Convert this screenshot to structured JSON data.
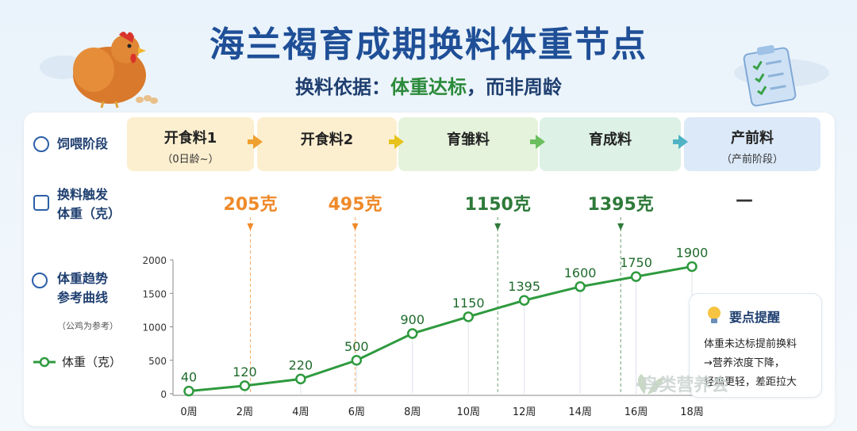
{
  "header": {
    "title": "海兰褐育成期换料体重节点",
    "subtitle_prefix": "换料依据：",
    "subtitle_highlight": "体重达标",
    "subtitle_suffix": "，而非周龄"
  },
  "rows": {
    "stage_label": "饲喂阶段",
    "trigger_label_1": "换料触发",
    "trigger_label_2": "体重（克）",
    "trend_label_1": "体重趋势",
    "trend_label_2": "参考曲线",
    "trend_note": "（公鸡为参考）",
    "legend_label": "体重（克）"
  },
  "stages": [
    {
      "name": "开食料1",
      "sub": "（0日龄~）",
      "color": "#fcefcf"
    },
    {
      "name": "开食料2",
      "sub": "",
      "color": "#fcefcf"
    },
    {
      "name": "育雏料",
      "sub": "",
      "color": "#e6f3dc"
    },
    {
      "name": "育成料",
      "sub": "",
      "color": "#ddf1e6"
    },
    {
      "name": "产前料",
      "sub": "（产前阶段）",
      "color": "#dbe9f8"
    }
  ],
  "triggers": [
    {
      "text": "205克",
      "color": "#ef8a2a",
      "week": 2.2
    },
    {
      "text": "495克",
      "color": "#ef8a2a",
      "week": 5.95
    },
    {
      "text": "1150克",
      "color": "#2e7a3a",
      "week": 11.05
    },
    {
      "text": "1395克",
      "color": "#2e7a3a",
      "week": 15.45
    },
    {
      "text": "—",
      "color": "#333333",
      "week": null
    }
  ],
  "tips": {
    "title": "要点提醒",
    "line1": "体重未达标提前换料",
    "line2": "→营养浓度下降，",
    "line3": "轻鸡更轻，差距拉大"
  },
  "watermark": "·鸟类营养会",
  "colors": {
    "line": "#2e9a3e",
    "title": "#1f4f97",
    "green": "#2a8a3a",
    "orange": "#ef8a2a"
  },
  "chart_data": {
    "type": "line",
    "x": [
      0,
      2,
      4,
      6,
      8,
      10,
      12,
      14,
      16,
      18
    ],
    "tick_labels": [
      "0周",
      "2周",
      "4周",
      "6周",
      "8周",
      "10周",
      "12周",
      "14周",
      "16周",
      "18周"
    ],
    "series": [
      {
        "name": "体重（克）",
        "values": [
          40,
          120,
          220,
          500,
          900,
          1150,
          1395,
          1600,
          1750,
          1900
        ]
      }
    ],
    "y_ticks": [
      0,
      500,
      1000,
      1500,
      2000
    ],
    "ylim": [
      0,
      2000
    ],
    "xlim": [
      0,
      18
    ],
    "grid": false,
    "legend": "left"
  }
}
